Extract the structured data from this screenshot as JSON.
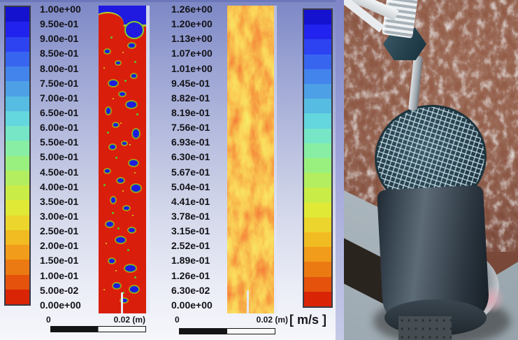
{
  "figure": {
    "legend_left": {
      "ticks": [
        "1.00e+00",
        "9.50e-01",
        "9.00e-01",
        "8.50e-01",
        "8.00e-01",
        "7.50e-01",
        "7.00e-01",
        "6.50e-01",
        "6.00e-01",
        "5.50e-01",
        "5.00e-01",
        "4.50e-01",
        "4.00e-01",
        "3.50e-01",
        "3.00e-01",
        "2.50e-01",
        "2.00e-01",
        "1.50e-01",
        "1.00e-01",
        "5.00e-02",
        "0.00e+00"
      ]
    },
    "legend_right": {
      "ticks": [
        "1.26e+00",
        "1.20e+00",
        "1.13e+00",
        "1.07e+00",
        "1.01e+00",
        "9.45e-01",
        "8.82e-01",
        "8.19e-01",
        "7.56e-01",
        "6.93e-01",
        "6.30e-01",
        "5.67e-01",
        "5.04e-01",
        "4.41e-01",
        "3.78e-01",
        "3.15e-01",
        "2.52e-01",
        "1.89e-01",
        "1.26e-01",
        "6.30e-02",
        "0.00e+00"
      ],
      "units_label": "[ m/s ]"
    },
    "plot1": {
      "scale_left": "0",
      "scale_right": "0.02 (m)",
      "bubbles": [
        [
          12,
          14,
          7,
          5
        ],
        [
          62,
          12,
          9,
          6
        ],
        [
          35,
          18,
          6,
          4
        ],
        [
          20,
          24,
          12,
          8
        ],
        [
          68,
          22,
          7,
          5
        ],
        [
          42,
          28,
          8,
          5
        ],
        [
          15,
          33,
          6,
          9
        ],
        [
          58,
          31,
          14,
          9
        ],
        [
          30,
          38,
          7,
          5
        ],
        [
          70,
          40,
          9,
          12
        ],
        [
          22,
          45,
          8,
          6
        ],
        [
          48,
          44,
          6,
          4
        ],
        [
          63,
          50,
          12,
          8
        ],
        [
          12,
          53,
          7,
          5
        ],
        [
          38,
          56,
          9,
          6
        ],
        [
          68,
          58,
          13,
          10
        ],
        [
          25,
          62,
          6,
          8
        ],
        [
          52,
          65,
          8,
          5
        ],
        [
          15,
          70,
          10,
          7
        ],
        [
          62,
          72,
          9,
          6
        ],
        [
          35,
          75,
          13,
          8
        ],
        [
          20,
          82,
          8,
          6
        ],
        [
          55,
          84,
          15,
          9
        ],
        [
          30,
          90,
          10,
          7
        ],
        [
          65,
          91,
          12,
          9
        ],
        [
          45,
          95,
          9,
          5
        ]
      ],
      "specks": [
        [
          25,
          10,
          3,
          0
        ],
        [
          50,
          15,
          2,
          1
        ],
        [
          75,
          18,
          3,
          0
        ],
        [
          10,
          20,
          2,
          1
        ],
        [
          55,
          24,
          3,
          0
        ],
        [
          30,
          30,
          2,
          1
        ],
        [
          80,
          35,
          3,
          0
        ],
        [
          45,
          38,
          2,
          1
        ],
        [
          18,
          41,
          3,
          0
        ],
        [
          65,
          45,
          2,
          1
        ],
        [
          35,
          49,
          3,
          0
        ],
        [
          75,
          54,
          2,
          1
        ],
        [
          10,
          58,
          3,
          0
        ],
        [
          50,
          60,
          2,
          1
        ],
        [
          28,
          67,
          3,
          0
        ],
        [
          70,
          68,
          2,
          1
        ],
        [
          40,
          72,
          3,
          0
        ],
        [
          15,
          77,
          2,
          1
        ],
        [
          60,
          79,
          3,
          0
        ],
        [
          35,
          86,
          2,
          1
        ],
        [
          75,
          88,
          3,
          0
        ],
        [
          10,
          92,
          2,
          1
        ],
        [
          50,
          93,
          3,
          0
        ]
      ]
    },
    "plot2": {
      "scale_left": "0",
      "scale_right": "0.02 (m)"
    }
  },
  "colors": {
    "rainbow": [
      "#1411cf",
      "#2222ee",
      "#2d43f2",
      "#3865f0",
      "#4384ec",
      "#4da0e6",
      "#57bce2",
      "#64d6de",
      "#76e6c6",
      "#88eea4",
      "#9af07f",
      "#b2ee5f",
      "#caec47",
      "#e0e936",
      "#ecd52c",
      "#f1bb22",
      "#f19c1a",
      "#ec7a12",
      "#e4520c",
      "#da2406"
    ],
    "contour_base_red": "#d91e0c",
    "bubble_blue": "#2019e0",
    "bubble_rim_green": "#46c42e",
    "speck_colors": [
      "#52cc2a",
      "#d6de1e"
    ],
    "background_top": "#7c87c5",
    "background_bottom": "#f6f7fb",
    "photo_rust": "#84503e",
    "photo_ice": "#c3ccd2",
    "photo_steel_dark": "#2b3640"
  },
  "chart_data": [
    {
      "type": "heatmap",
      "title": "",
      "colorbar_ticks": [
        "1.00e+00",
        "9.50e-01",
        "9.00e-01",
        "8.50e-01",
        "8.00e-01",
        "7.50e-01",
        "7.00e-01",
        "6.50e-01",
        "6.00e-01",
        "5.50e-01",
        "5.00e-01",
        "4.50e-01",
        "4.00e-01",
        "3.50e-01",
        "3.00e-01",
        "2.50e-01",
        "2.00e-01",
        "1.50e-01",
        "1.00e-01",
        "5.00e-02",
        "0.00e+00"
      ],
      "colorbar_range": [
        0,
        1
      ],
      "colormap": "rainbow, blue = max (top) to red = min (bottom)",
      "units": "",
      "scale_bar": {
        "start": "0",
        "end": "0.02 (m)"
      },
      "layout_hint": "tall vertical column; field mostly at minimum (red) with pockets at maximum (blue) rimmed green/yellow; blue layer across top of column"
    },
    {
      "type": "heatmap",
      "title": "",
      "colorbar_ticks": [
        "1.26e+00",
        "1.20e+00",
        "1.13e+00",
        "1.07e+00",
        "1.01e+00",
        "9.45e-01",
        "8.82e-01",
        "8.19e-01",
        "7.56e-01",
        "6.93e-01",
        "6.30e-01",
        "5.67e-01",
        "5.04e-01",
        "4.41e-01",
        "3.78e-01",
        "3.15e-01",
        "2.52e-01",
        "1.89e-01",
        "1.26e-01",
        "6.30e-02",
        "0.00e+00"
      ],
      "colorbar_range": [
        0,
        1.26
      ],
      "colormap": "rainbow, blue = max (top) to red = min (bottom)",
      "units": "m/s",
      "scale_bar": {
        "start": "0",
        "end": "0.02 (m)"
      },
      "layout_hint": "tall vertical column; turbulent field mostly low magnitude (red/orange) with yellow-green swirl filaments"
    }
  ]
}
